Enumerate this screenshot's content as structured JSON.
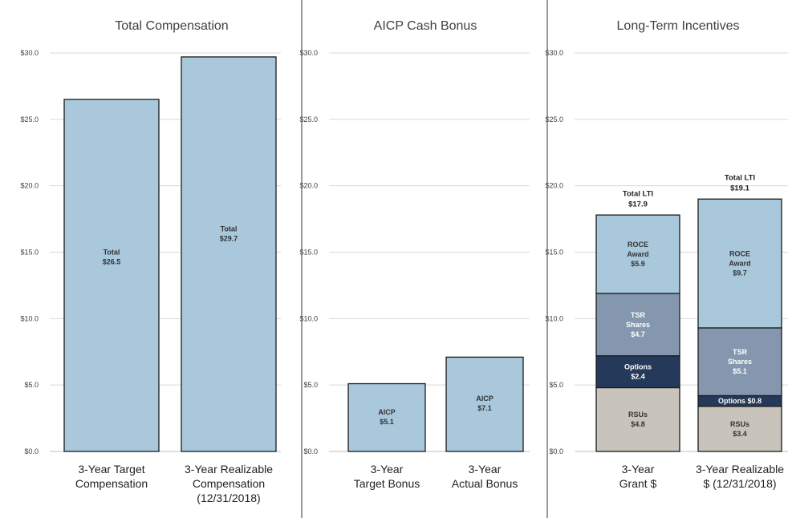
{
  "chart_data": [
    {
      "type": "bar",
      "title": "Total Compensation",
      "ylim": [
        0,
        30
      ],
      "yticks": [
        "$0.0",
        "$5.0",
        "$10.0",
        "$15.0",
        "$20.0",
        "$25.0",
        "$30.0"
      ],
      "categories": [
        [
          "3-Year Target",
          "Compensation"
        ],
        [
          "3-Year Realizable",
          "Compensation",
          "(12/31/2018)"
        ]
      ],
      "series": [
        {
          "name": "Total",
          "values": [
            26.5,
            29.7
          ],
          "labels": [
            "$26.5",
            "$29.7"
          ],
          "color": "#a9c8dc"
        }
      ],
      "grid": true
    },
    {
      "type": "bar",
      "title": "AICP Cash Bonus",
      "ylim": [
        0,
        30
      ],
      "yticks": [
        "$0.0",
        "$5.0",
        "$10.0",
        "$15.0",
        "$20.0",
        "$25.0",
        "$30.0"
      ],
      "categories": [
        [
          "3-Year",
          "Target Bonus"
        ],
        [
          "3-Year",
          "Actual Bonus"
        ]
      ],
      "series": [
        {
          "name": "AICP",
          "values": [
            5.1,
            7.1
          ],
          "labels": [
            "$5.1",
            "$7.1"
          ],
          "color": "#a9c8dc"
        }
      ],
      "grid": true
    },
    {
      "type": "stacked-bar",
      "title": "Long-Term Incentives",
      "ylim": [
        0,
        30
      ],
      "yticks": [
        "$0.0",
        "$5.0",
        "$10.0",
        "$15.0",
        "$20.0",
        "$25.0",
        "$30.0"
      ],
      "categories": [
        [
          "3-Year",
          "Grant $"
        ],
        [
          "3-Year Realizable",
          "$ (12/31/2018)"
        ]
      ],
      "series": [
        {
          "name": "RSUs",
          "values": [
            4.8,
            3.4
          ],
          "labels": [
            "$4.8",
            "$3.4"
          ],
          "color": "#c8c4bb"
        },
        {
          "name": "Options",
          "values": [
            2.4,
            0.8
          ],
          "labels": [
            "$2.4",
            "$0.8"
          ],
          "color": "#25395a"
        },
        {
          "name": "TSR Shares",
          "values": [
            4.7,
            5.1
          ],
          "labels": [
            "$4.7",
            "$5.1"
          ],
          "color": "#8497ae"
        },
        {
          "name": "ROCE Award",
          "values": [
            5.9,
            9.7
          ],
          "labels": [
            "$5.9",
            "$9.7"
          ],
          "color": "#a9c8dc"
        }
      ],
      "totals": [
        {
          "name": "Total LTI",
          "value": 17.9,
          "label": "$17.9"
        },
        {
          "name": "Total LTI",
          "value": 19.1,
          "label": "$19.1"
        }
      ],
      "grid": true
    }
  ]
}
